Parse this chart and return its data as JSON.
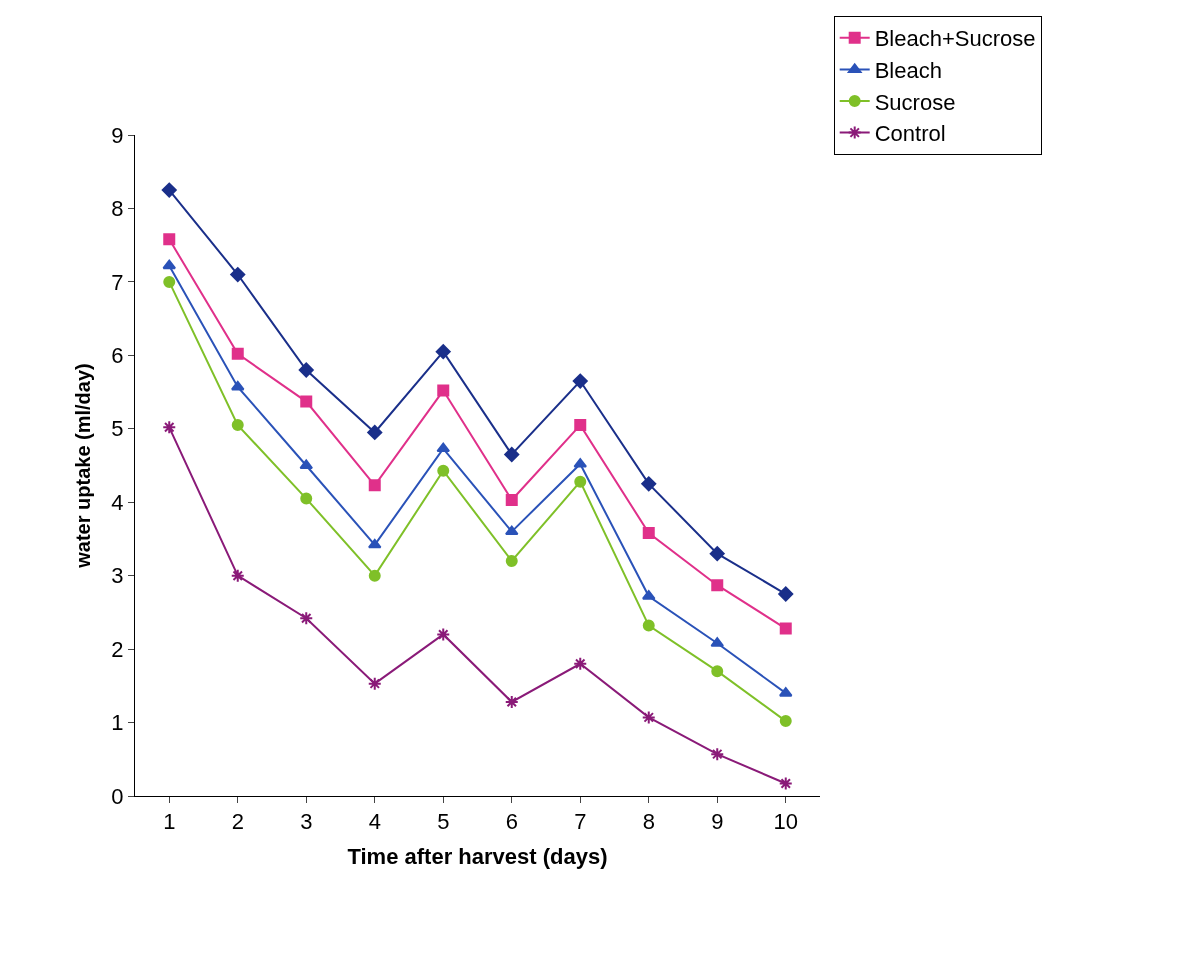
{
  "chart_data": {
    "type": "line",
    "xlabel": "Time after harvest (days)",
    "ylabel": "water uptake (ml/day)",
    "categories": [
      "1",
      "2",
      "3",
      "4",
      "5",
      "6",
      "7",
      "8",
      "9",
      "10"
    ],
    "ylim": [
      0,
      9
    ],
    "yticks": [
      0,
      1,
      2,
      3,
      4,
      5,
      6,
      7,
      8,
      9
    ],
    "legend": "top right",
    "series": [
      {
        "color": "#1a2f8a",
        "marker": "diamond",
        "values": [
          8.25,
          7.1,
          5.8,
          4.95,
          6.05,
          4.65,
          5.65,
          4.25,
          3.3,
          2.75
        ]
      },
      {
        "name": "Bleach+Sucrose",
        "color": "#e0308a",
        "marker": "square",
        "values": [
          7.58,
          6.02,
          5.37,
          4.23,
          5.52,
          4.03,
          5.05,
          3.58,
          2.87,
          2.28
        ]
      },
      {
        "name": "Bleach",
        "color": "#2a52b8",
        "marker": "triangle",
        "values": [
          7.22,
          5.57,
          4.5,
          3.42,
          4.73,
          3.6,
          4.52,
          2.72,
          2.08,
          1.4
        ]
      },
      {
        "name": "Sucrose",
        "color": "#7fc028",
        "marker": "circle",
        "values": [
          7.0,
          5.05,
          4.05,
          3.0,
          4.43,
          3.2,
          4.28,
          2.32,
          1.7,
          1.02
        ]
      },
      {
        "name": "Control",
        "color": "#8a1a78",
        "marker": "cross",
        "values": [
          5.02,
          3.0,
          2.42,
          1.53,
          2.2,
          1.28,
          1.8,
          1.07,
          0.57,
          0.17
        ]
      }
    ]
  }
}
